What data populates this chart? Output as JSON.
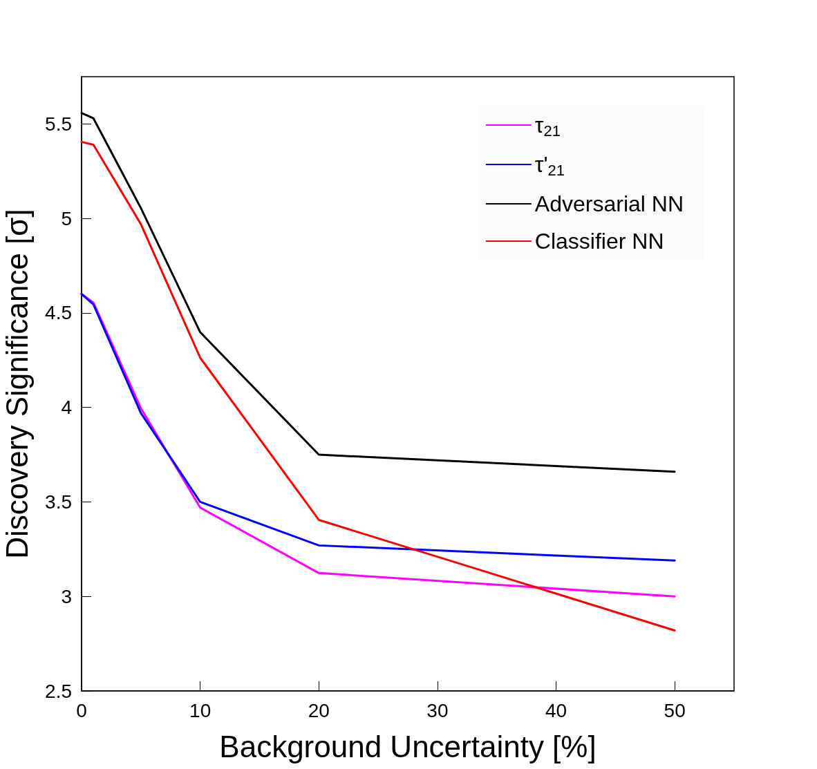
{
  "chart_data": {
    "type": "line",
    "xlabel": "Background Uncertainty [%]",
    "ylabel": "Discovery Significance [σ]",
    "x": [
      0,
      1,
      5,
      10,
      20,
      50
    ],
    "series": [
      {
        "name": "τ$_{21}$",
        "color": "#ff00ff",
        "values": [
          4.6,
          4.555,
          3.996,
          3.47,
          3.124,
          3.0
        ]
      },
      {
        "name": "τ'$_{21}$",
        "color": "#0000ff",
        "values": [
          4.6,
          4.545,
          3.97,
          3.5,
          3.27,
          3.19
        ]
      },
      {
        "name": "Adversarial NN",
        "color": "#000000",
        "values": [
          5.558,
          5.53,
          5.055,
          4.398,
          3.75,
          3.66
        ]
      },
      {
        "name": "Classifier NN",
        "color": "#ff0000",
        "values": [
          5.405,
          5.39,
          4.97,
          4.263,
          3.405,
          2.82
        ]
      }
    ],
    "xlim": [
      0,
      55
    ],
    "xticks": [
      0,
      10,
      20,
      30,
      40,
      50
    ],
    "ylim": [
      2.5,
      5.75
    ],
    "yticks": [
      2.5,
      3,
      3.5,
      4,
      4.5,
      5,
      5.5
    ],
    "grid": false,
    "legend": "top right",
    "marker": "none",
    "line_style": "solid"
  }
}
